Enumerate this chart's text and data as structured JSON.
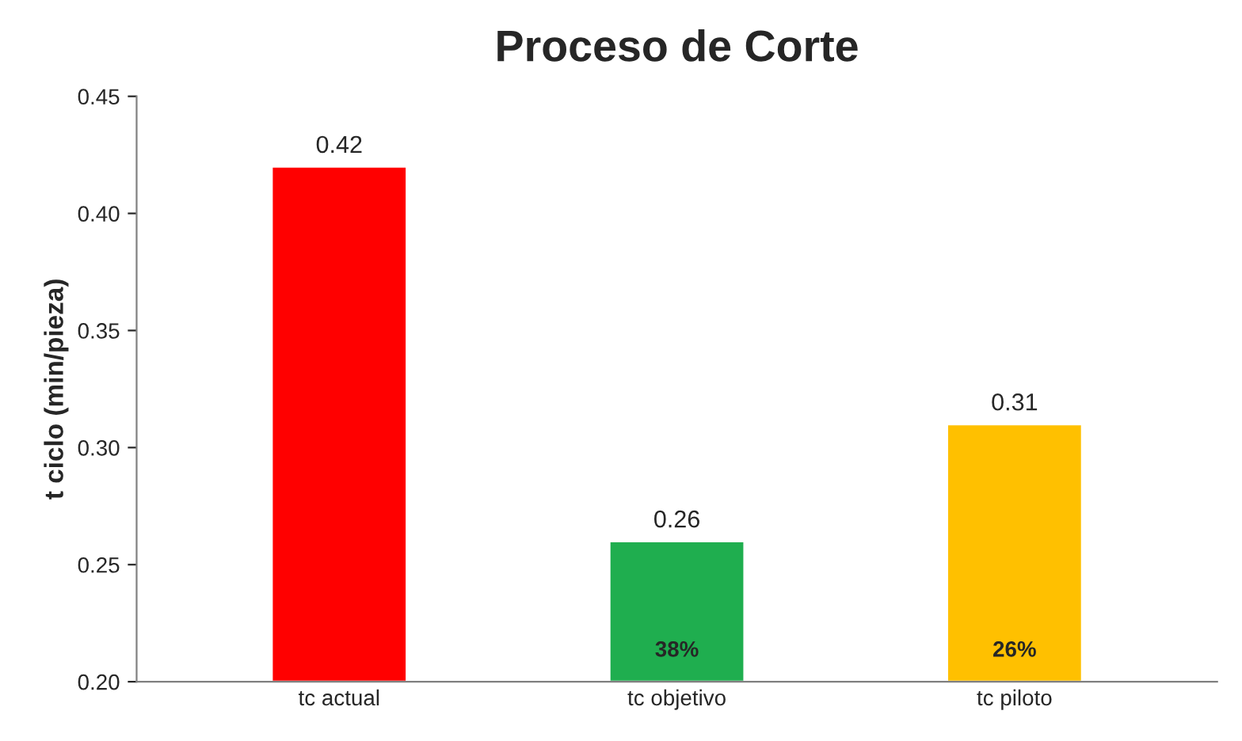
{
  "chart_data": {
    "type": "bar",
    "title": "Proceso de Corte",
    "ylabel": "t ciclo (min/pieza)",
    "categories": [
      "tc actual",
      "tc objetivo",
      "tc piloto"
    ],
    "values": [
      0.42,
      0.26,
      0.31
    ],
    "colors": [
      "#ff0000",
      "#1fae4f",
      "#ffc000"
    ],
    "ylim": [
      0.2,
      0.45
    ],
    "yticks": [
      {
        "value": 0.2,
        "label": "0.20"
      },
      {
        "value": 0.25,
        "label": "0.25"
      },
      {
        "value": 0.3,
        "label": "0.30"
      },
      {
        "value": 0.35,
        "label": "0.35"
      },
      {
        "value": 0.4,
        "label": "0.40"
      },
      {
        "value": 0.45,
        "label": "0.45"
      }
    ],
    "data_labels": true,
    "annotations": [
      "38%",
      "26%"
    ]
  }
}
